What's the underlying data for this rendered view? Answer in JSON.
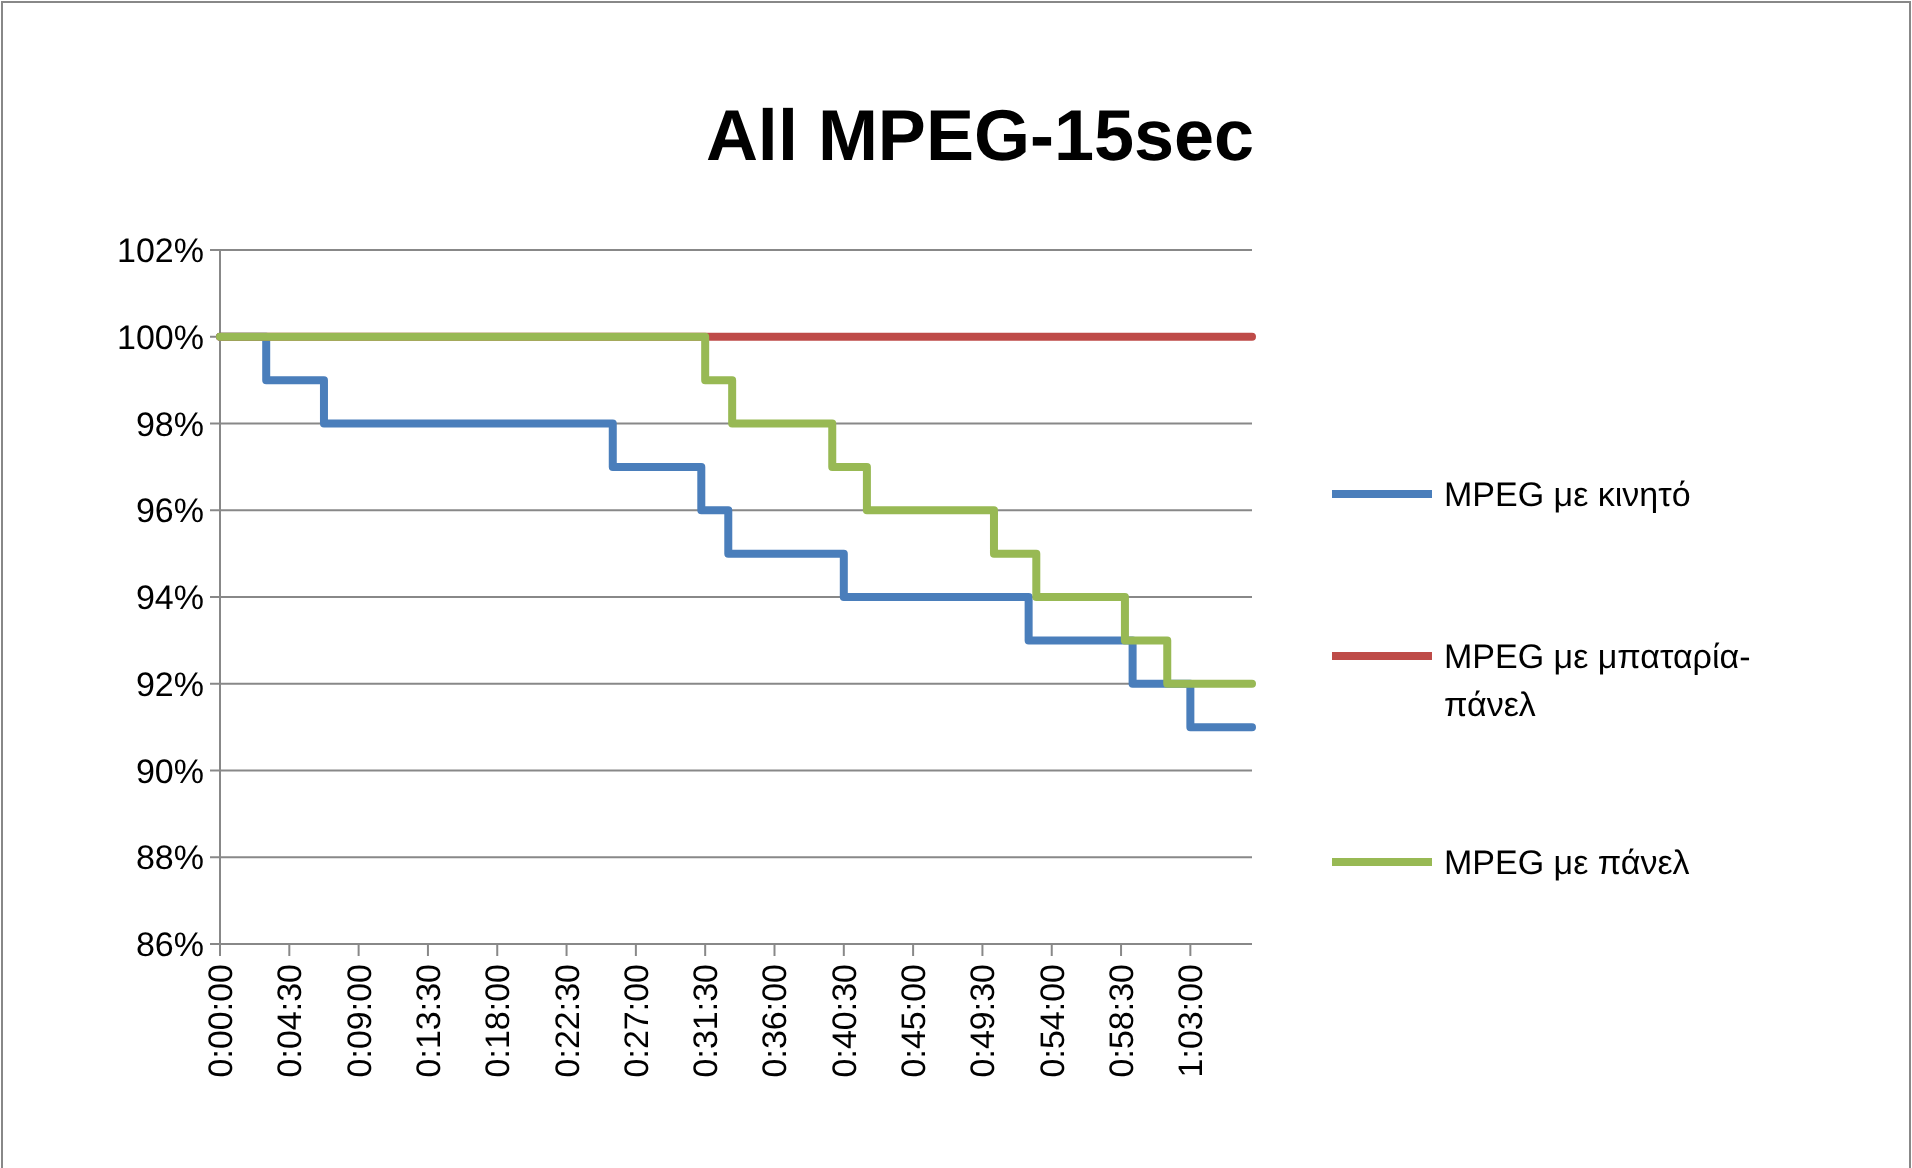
{
  "chart_data": {
    "type": "step",
    "title": "All MPEG-15sec",
    "series": [
      {
        "name": "MPEG με κινητό",
        "color": "#4a7ebb",
        "x": [
          0,
          0.05,
          0.1125,
          0.425,
          0.5208,
          0.55,
          0.675,
          0.875,
          0.9875,
          1.05,
          1.1167
        ],
        "values": [
          100,
          99,
          98,
          97,
          96,
          95,
          94,
          93,
          92,
          91,
          91
        ]
      },
      {
        "name": "MPEG με μπαταρία-πάνελ",
        "color": "#be4b48",
        "x": [
          0,
          1.1167
        ],
        "values": [
          100,
          100
        ]
      },
      {
        "name": "MPEG με πάνελ",
        "color": "#98b954",
        "x": [
          0,
          0.525,
          0.5542,
          0.6625,
          0.7,
          0.8375,
          0.8833,
          0.9792,
          1.025,
          1.1167
        ],
        "values": [
          100,
          99,
          98,
          97,
          96,
          95,
          94,
          93,
          92,
          92
        ]
      }
    ],
    "xlim": [
      0,
      1.1167
    ],
    "xticks": [
      {
        "value": 0,
        "label": "0:00:00"
      },
      {
        "value": 0.075,
        "label": "0:04:30"
      },
      {
        "value": 0.15,
        "label": "0:09:00"
      },
      {
        "value": 0.225,
        "label": "0:13:30"
      },
      {
        "value": 0.3,
        "label": "0:18:00"
      },
      {
        "value": 0.375,
        "label": "0:22:30"
      },
      {
        "value": 0.45,
        "label": "0:27:00"
      },
      {
        "value": 0.525,
        "label": "0:31:30"
      },
      {
        "value": 0.6,
        "label": "0:36:00"
      },
      {
        "value": 0.675,
        "label": "0:40:30"
      },
      {
        "value": 0.75,
        "label": "0:45:00"
      },
      {
        "value": 0.825,
        "label": "0:49:30"
      },
      {
        "value": 0.9,
        "label": "0:54:00"
      },
      {
        "value": 0.975,
        "label": "0:58:30"
      },
      {
        "value": 1.05,
        "label": "1:03:00"
      }
    ],
    "ylim": [
      86,
      102
    ],
    "yticks": [
      {
        "value": 86,
        "label": "86%"
      },
      {
        "value": 88,
        "label": "88%"
      },
      {
        "value": 90,
        "label": "90%"
      },
      {
        "value": 92,
        "label": "92%"
      },
      {
        "value": 94,
        "label": "94%"
      },
      {
        "value": 96,
        "label": "96%"
      },
      {
        "value": 98,
        "label": "98%"
      },
      {
        "value": 100,
        "label": "100%"
      },
      {
        "value": 102,
        "label": "102%"
      }
    ],
    "grid": "y",
    "legend": "right",
    "marker": "none",
    "line_style": "solid"
  }
}
